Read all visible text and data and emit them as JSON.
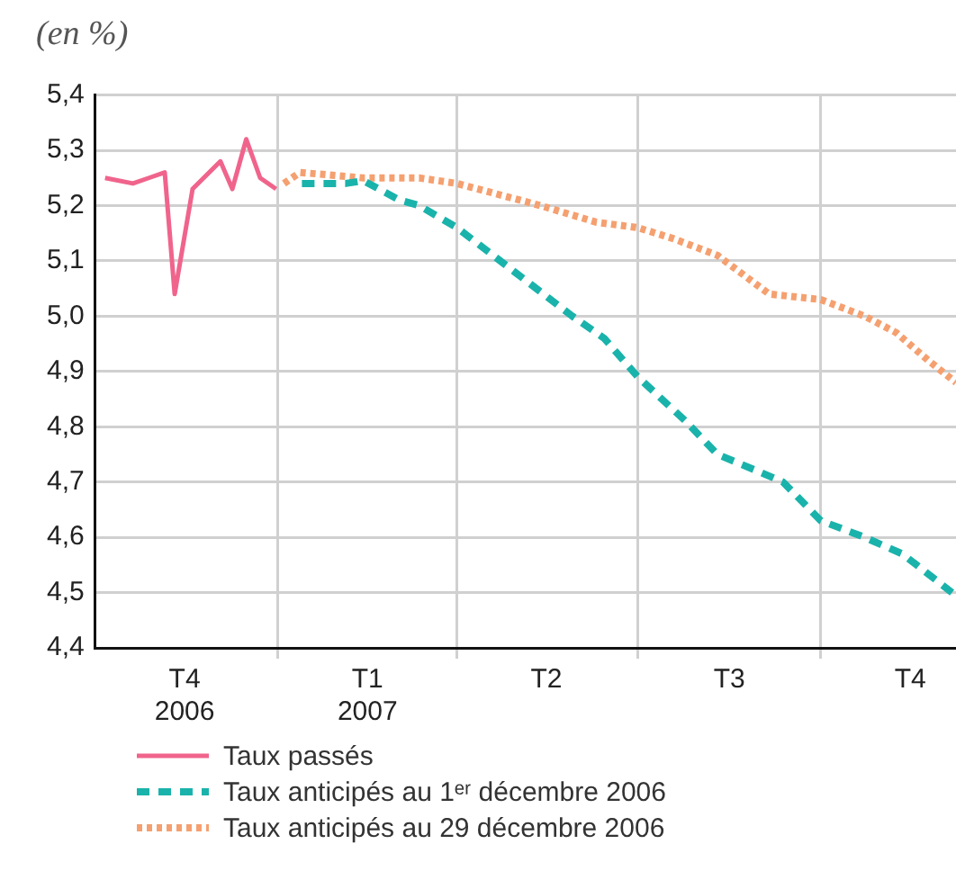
{
  "chart_data": {
    "type": "line",
    "ylabel": "(en %)",
    "xlim": [
      "2006-10-01",
      "2007-12-08"
    ],
    "xticks": [
      {
        "value": "2006-11-15",
        "label": "T4\n2006"
      },
      {
        "value": "2007-01-01",
        "label": null
      },
      {
        "value": "2007-02-15",
        "label": "T1\n2007"
      },
      {
        "value": "2007-04-01",
        "label": null
      },
      {
        "value": "2007-05-16",
        "label": "T2"
      },
      {
        "value": "2007-07-01",
        "label": null
      },
      {
        "value": "2007-08-16",
        "label": "T3"
      },
      {
        "value": "2007-10-01",
        "label": null
      },
      {
        "value": "2007-11-15",
        "label": "T4"
      }
    ],
    "ylim": [
      4.4,
      5.4
    ],
    "yticks": [
      {
        "value": 4.4,
        "label": "4,4"
      },
      {
        "value": 4.5,
        "label": "4,5"
      },
      {
        "value": 4.6,
        "label": "4,6"
      },
      {
        "value": 4.7,
        "label": "4,7"
      },
      {
        "value": 4.8,
        "label": "4,8"
      },
      {
        "value": 4.9,
        "label": "4,9"
      },
      {
        "value": 5.0,
        "label": "5,0"
      },
      {
        "value": 5.1,
        "label": "5,1"
      },
      {
        "value": 5.2,
        "label": "5,2"
      },
      {
        "value": 5.3,
        "label": "5,3"
      },
      {
        "value": 5.4,
        "label": "5,4"
      }
    ],
    "grid": true,
    "legend": "bottom",
    "series": [
      {
        "name": "Taux passés",
        "color": "#f0648c",
        "line_style": "solid",
        "x": [
          "2006-10-06",
          "2006-10-20",
          "2006-10-28",
          "2006-11-05",
          "2006-11-10",
          "2006-11-19",
          "2006-12-03",
          "2006-12-09",
          "2006-12-16",
          "2006-12-23",
          "2006-12-31"
        ],
        "values": [
          5.25,
          5.24,
          5.25,
          5.26,
          5.04,
          5.23,
          5.28,
          5.23,
          5.32,
          5.25,
          5.23
        ]
      },
      {
        "name": "Taux anticipés au 1ᵉʳ décembre 2006",
        "color": "#1ab3ab",
        "line_style": "dashed",
        "x": [
          "2007-01-13",
          "2007-02-04",
          "2007-02-13",
          "2007-03-03",
          "2007-03-13",
          "2007-04-01",
          "2007-04-30",
          "2007-05-29",
          "2007-06-14",
          "2007-07-01",
          "2007-07-25",
          "2007-08-10",
          "2007-08-30",
          "2007-09-12",
          "2007-10-01",
          "2007-10-23",
          "2007-11-11",
          "2007-12-06"
        ],
        "values": [
          5.24,
          5.24,
          5.245,
          5.21,
          5.2,
          5.16,
          5.08,
          5.0,
          4.96,
          4.89,
          4.81,
          4.75,
          4.72,
          4.7,
          4.63,
          4.6,
          4.57,
          4.5
        ]
      },
      {
        "name": "Taux anticipés au 29 décembre 2006",
        "color": "#f5a070",
        "line_style": "dotted",
        "x": [
          "2007-01-04",
          "2007-01-12",
          "2007-02-13",
          "2007-03-13",
          "2007-04-01",
          "2007-05-13",
          "2007-06-10",
          "2007-07-01",
          "2007-07-19",
          "2007-08-10",
          "2007-09-05",
          "2007-10-01",
          "2007-10-23",
          "2007-11-08",
          "2007-11-24",
          "2007-12-08"
        ],
        "values": [
          5.24,
          5.26,
          5.25,
          5.25,
          5.24,
          5.2,
          5.17,
          5.16,
          5.14,
          5.11,
          5.04,
          5.03,
          5.0,
          4.97,
          4.92,
          4.88
        ]
      }
    ]
  }
}
